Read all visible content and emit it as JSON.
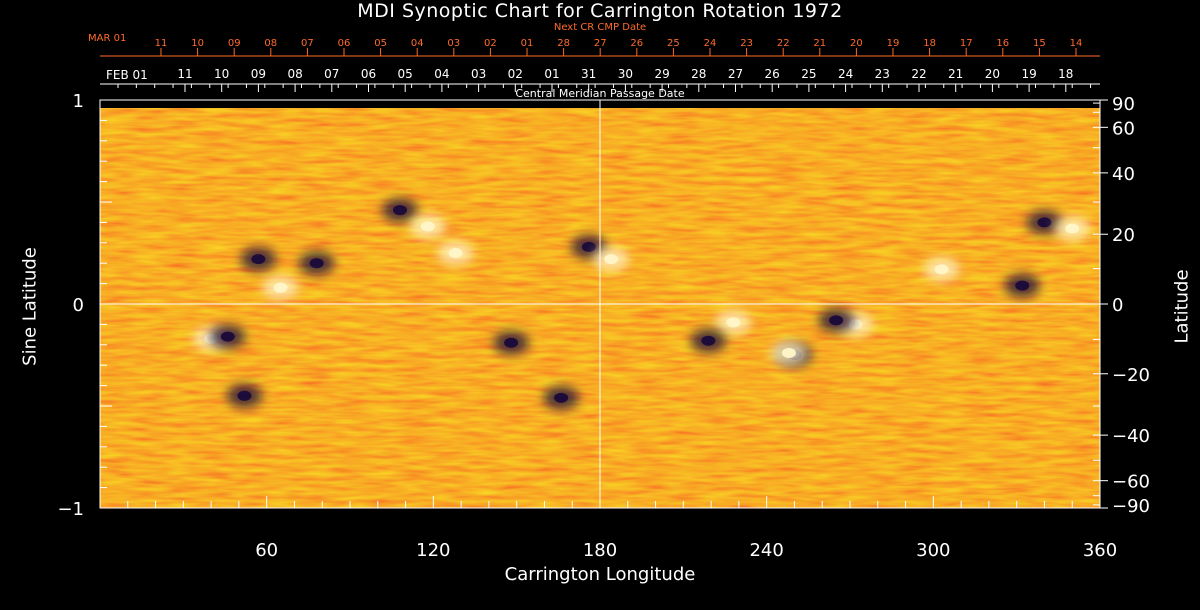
{
  "chart_data": {
    "type": "heatmap",
    "title": "MDI Synoptic Chart for Carrington Rotation 1972",
    "xlabel": "Carrington Longitude",
    "ylabel": "Sine Latitude",
    "y2label": "Latitude",
    "xlim": [
      0,
      360
    ],
    "ylim": [
      -1,
      1
    ],
    "x_ticks": [
      60,
      120,
      180,
      240,
      300,
      360
    ],
    "y_ticks": [
      -1,
      0,
      1
    ],
    "y2_ticks": [
      90,
      60,
      40,
      20,
      0,
      -20,
      -40,
      -60,
      -90
    ],
    "y2_tick_labels": [
      "90",
      "60",
      "40",
      "20",
      "0",
      "−20",
      "−40",
      "−60",
      "−90"
    ],
    "top_axis_title": "Central Meridian Passage Date",
    "top_axis_start_label": "FEB 01",
    "top_axis_dates": [
      "11",
      "10",
      "09",
      "08",
      "07",
      "06",
      "05",
      "04",
      "03",
      "02",
      "01",
      "31",
      "30",
      "29",
      "28",
      "27",
      "26",
      "25",
      "24",
      "23",
      "22",
      "21",
      "20",
      "19",
      "18"
    ],
    "next_axis_title": "Next CR CMP Date",
    "next_axis_start_label": "MAR 01",
    "next_axis_dates": [
      "11",
      "10",
      "09",
      "08",
      "07",
      "06",
      "05",
      "04",
      "03",
      "02",
      "01",
      "28",
      "27",
      "26",
      "25",
      "24",
      "23",
      "22",
      "21",
      "20",
      "19",
      "18",
      "17",
      "16",
      "15",
      "14"
    ],
    "grid_lines": {
      "x": 180,
      "y": 0
    },
    "colors": {
      "background": "#000000",
      "field_base": "#f05018",
      "positive_polarity": "#fff6c8",
      "negative_polarity": "#1a0a3a",
      "next_axis_color": "#ff6a2a"
    },
    "active_regions": [
      {
        "lon": 57,
        "sinlat": 0.22,
        "polarity": "negative"
      },
      {
        "lon": 65,
        "sinlat": 0.08,
        "polarity": "positive"
      },
      {
        "lon": 78,
        "sinlat": 0.2,
        "polarity": "negative"
      },
      {
        "lon": 108,
        "sinlat": 0.46,
        "polarity": "negative"
      },
      {
        "lon": 118,
        "sinlat": 0.38,
        "polarity": "positive"
      },
      {
        "lon": 128,
        "sinlat": 0.25,
        "polarity": "positive"
      },
      {
        "lon": 176,
        "sinlat": 0.28,
        "polarity": "negative"
      },
      {
        "lon": 184,
        "sinlat": 0.22,
        "polarity": "positive"
      },
      {
        "lon": 228,
        "sinlat": -0.09,
        "polarity": "positive"
      },
      {
        "lon": 219,
        "sinlat": -0.18,
        "polarity": "negative"
      },
      {
        "lon": 250,
        "sinlat": -0.25,
        "polarity": "negative"
      },
      {
        "lon": 248,
        "sinlat": -0.24,
        "polarity": "positive"
      },
      {
        "lon": 272,
        "sinlat": -0.1,
        "polarity": "positive"
      },
      {
        "lon": 265,
        "sinlat": -0.08,
        "polarity": "negative"
      },
      {
        "lon": 40,
        "sinlat": -0.17,
        "polarity": "positive"
      },
      {
        "lon": 46,
        "sinlat": -0.16,
        "polarity": "negative"
      },
      {
        "lon": 52,
        "sinlat": -0.45,
        "polarity": "negative"
      },
      {
        "lon": 148,
        "sinlat": -0.19,
        "polarity": "negative"
      },
      {
        "lon": 166,
        "sinlat": -0.46,
        "polarity": "negative"
      },
      {
        "lon": 340,
        "sinlat": 0.4,
        "polarity": "negative"
      },
      {
        "lon": 350,
        "sinlat": 0.37,
        "polarity": "positive"
      },
      {
        "lon": 303,
        "sinlat": 0.17,
        "polarity": "positive"
      },
      {
        "lon": 332,
        "sinlat": 0.09,
        "polarity": "negative"
      }
    ]
  }
}
